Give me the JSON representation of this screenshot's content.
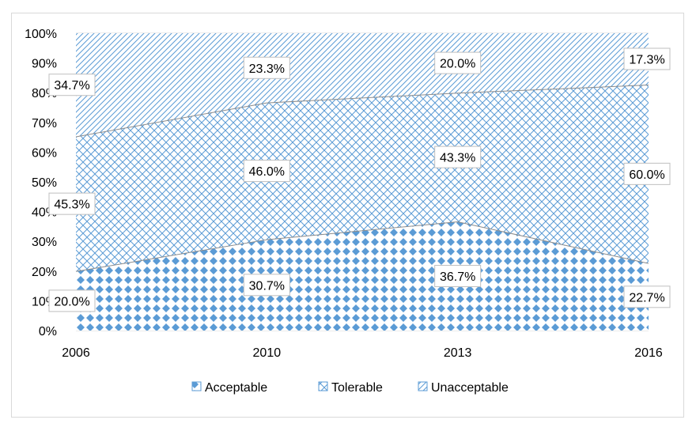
{
  "chart_data": {
    "type": "area",
    "stacked": "percent",
    "x": [
      "2006",
      "2010",
      "2013",
      "2016"
    ],
    "y_ticks": [
      "0%",
      "10%",
      "20%",
      "30%",
      "40%",
      "50%",
      "60%",
      "70%",
      "80%",
      "90%",
      "100%"
    ],
    "ylim": [
      0,
      100
    ],
    "series": [
      {
        "name": "Acceptable",
        "values": [
          20.0,
          30.7,
          36.7,
          22.7
        ],
        "labels": [
          "20.0%",
          "30.7%",
          "36.7%",
          "22.7%"
        ],
        "color": "#5b9bd5",
        "pattern": "diamond"
      },
      {
        "name": "Tolerable",
        "values": [
          45.3,
          46.0,
          43.3,
          60.0
        ],
        "labels": [
          "45.3%",
          "46.0%",
          "43.3%",
          "60.0%"
        ],
        "color": "#5b9bd5",
        "pattern": "cross"
      },
      {
        "name": "Unacceptable",
        "values": [
          34.7,
          23.3,
          20.0,
          17.3
        ],
        "labels": [
          "34.7%",
          "23.3%",
          "20.0%",
          "17.3%"
        ],
        "color": "#5b9bd5",
        "pattern": "diagonal"
      }
    ],
    "legend": {
      "position": "bottom"
    },
    "grid": true
  }
}
